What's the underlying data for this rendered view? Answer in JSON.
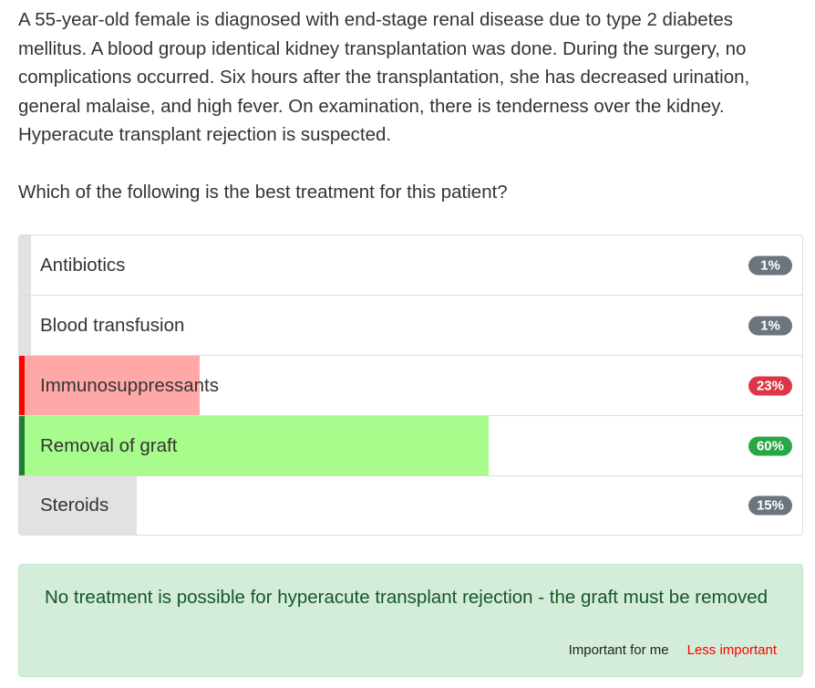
{
  "question": {
    "text": "A 55-year-old female is diagnosed with end-stage renal disease due to type 2 diabetes mellitus. A blood group identical kidney transplantation was done. During the surgery, no complications occurred. Six hours after the transplantation, she has decreased urination, general malaise, and high fever. On examination, there is tenderness over the kidney. Hyperacute transplant rejection is suspected.",
    "prompt": "Which of the following is the best treatment for this patient?"
  },
  "options": [
    {
      "label": "Antibiotics",
      "percent": 1,
      "percent_label": "1%",
      "state": "neutral"
    },
    {
      "label": "Blood transfusion",
      "percent": 1,
      "percent_label": "1%",
      "state": "neutral"
    },
    {
      "label": "Immunosuppressants",
      "percent": 23,
      "percent_label": "23%",
      "state": "wrong"
    },
    {
      "label": "Removal of graft",
      "percent": 60,
      "percent_label": "60%",
      "state": "correct"
    },
    {
      "label": "Steroids",
      "percent": 15,
      "percent_label": "15%",
      "state": "neutral"
    }
  ],
  "colors": {
    "neutral_fill": "#e2e2e2",
    "neutral_badge": "#6c757d",
    "wrong_fill": "#ffa8a8",
    "wrong_accent": "#ff0000",
    "wrong_badge": "#dc3545",
    "correct_fill": "#a8fc8c",
    "correct_accent": "#1e7e34",
    "correct_badge": "#28a745"
  },
  "explanation": {
    "text": "No treatment is possible for hyperacute transplant rejection - the graft must be removed",
    "important_label": "Important for me",
    "less_important_label": "Less important"
  }
}
